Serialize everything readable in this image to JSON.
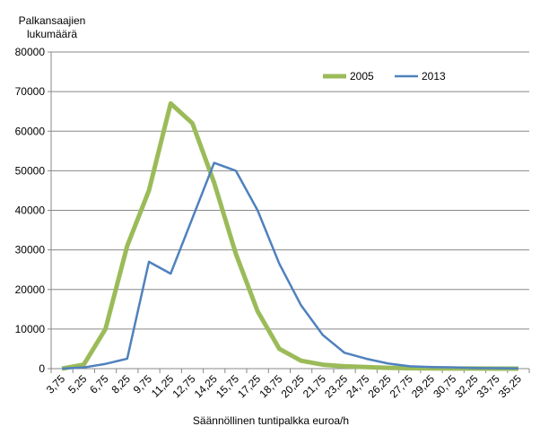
{
  "chart_data": {
    "type": "line",
    "ylabel_lines": [
      "Palkansaajien",
      "lukumäärä"
    ],
    "xlabel": "Säännöllinen tuntipalkka euroa/h",
    "ylim": [
      0,
      80000
    ],
    "yticks": [
      "0",
      "10000",
      "20000",
      "30000",
      "40000",
      "50000",
      "60000",
      "70000",
      "80000"
    ],
    "grid": true,
    "legend": "top-right",
    "categories": [
      "3,75",
      "5,25",
      "6,75",
      "8,25",
      "9,75",
      "11,25",
      "12,75",
      "14,25",
      "15,75",
      "17,25",
      "18,75",
      "20,25",
      "21,75",
      "23,25",
      "24,75",
      "26,25",
      "27,75",
      "29,25",
      "30,75",
      "32,25",
      "33,75",
      "35,25"
    ],
    "series": [
      {
        "name": "2005",
        "color": "#9BBB59",
        "values": [
          0,
          1000,
          10000,
          31000,
          45000,
          67000,
          62000,
          47000,
          29000,
          14500,
          5000,
          2000,
          1000,
          600,
          400,
          200,
          100,
          50,
          30,
          20,
          10,
          0
        ]
      },
      {
        "name": "2013",
        "color": "#4F81BD",
        "values": [
          0,
          300,
          1200,
          2500,
          27000,
          24000,
          38000,
          52000,
          50000,
          40000,
          26500,
          16000,
          8500,
          4000,
          2500,
          1300,
          600,
          400,
          300,
          150,
          100,
          50
        ]
      }
    ]
  }
}
